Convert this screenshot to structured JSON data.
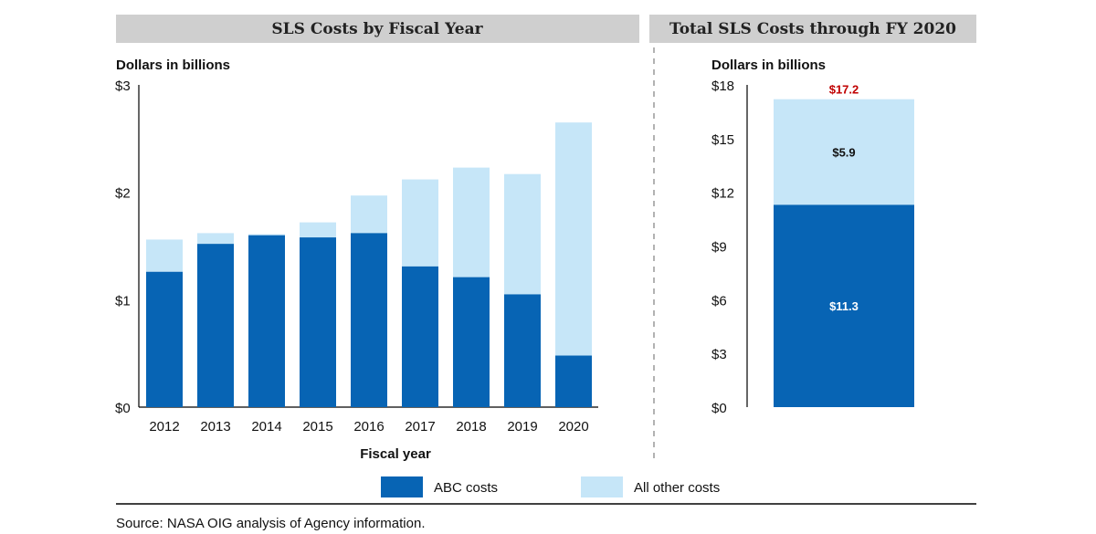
{
  "colors": {
    "abc": "#0764b4",
    "other": "#c6e6f8",
    "total_label": "#c00000",
    "header_bg": "#cfcfcf"
  },
  "legend": {
    "abc": "ABC costs",
    "other": "All other costs"
  },
  "source": "Source:  NASA OIG analysis of Agency information.",
  "chart_data": [
    {
      "type": "bar",
      "stacked": true,
      "title": "SLS Costs by Fiscal Year",
      "ylabel": "Dollars in billions",
      "xlabel": "Fiscal year",
      "ylim": [
        0,
        3
      ],
      "yticks": [
        "$0",
        "$1",
        "$2",
        "$3"
      ],
      "categories": [
        "2012",
        "2013",
        "2014",
        "2015",
        "2016",
        "2017",
        "2018",
        "2019",
        "2020"
      ],
      "series": [
        {
          "name": "ABC costs",
          "values": [
            1.26,
            1.52,
            1.6,
            1.58,
            1.62,
            1.31,
            1.21,
            1.05,
            0.48
          ]
        },
        {
          "name": "All other costs",
          "values": [
            0.3,
            0.1,
            0.01,
            0.14,
            0.35,
            0.81,
            1.02,
            1.12,
            2.17
          ]
        }
      ]
    },
    {
      "type": "bar",
      "stacked": true,
      "title": "Total SLS Costs through FY 2020",
      "ylabel": "Dollars in billions",
      "ylim": [
        0,
        18
      ],
      "yticks": [
        "$0",
        "$3",
        "$6",
        "$9",
        "$12",
        "$15",
        "$18"
      ],
      "series": [
        {
          "name": "ABC costs",
          "values": [
            11.3
          ],
          "label": "$11.3"
        },
        {
          "name": "All other costs",
          "values": [
            5.9
          ],
          "label": "$5.9"
        }
      ],
      "total_label": "$17.2"
    }
  ]
}
